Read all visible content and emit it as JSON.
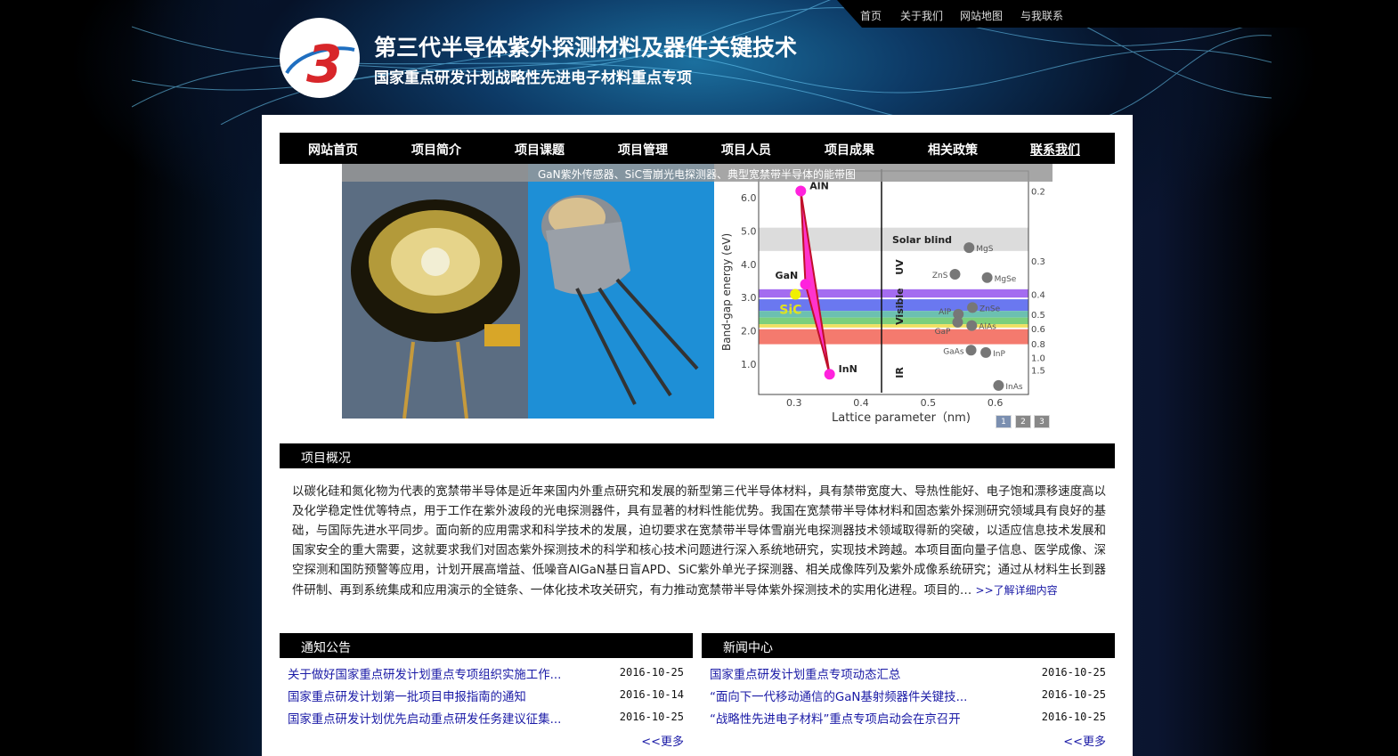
{
  "header": {
    "title": "第三代半导体紫外探测材料及器件关键技术",
    "subtitle": "国家重点研发计划战略性先进电子材料重点专项",
    "logo_text": "3",
    "top_links": [
      "首页",
      "关于我们",
      "网站地图",
      "与我联系"
    ]
  },
  "nav": [
    "网站首页",
    "项目简介",
    "项目课题",
    "项目管理",
    "项目人员",
    "项目成果",
    "相关政策",
    "联系我们"
  ],
  "slideshow": {
    "caption": "GaN紫外传感器、SiC雪崩光电探测器、典型宽禁带半导体的能带图",
    "pages": [
      "1",
      "2",
      "3"
    ],
    "active_page": 1,
    "figure": {
      "ylabel": "Band-gap energy (eV)",
      "xlabel": "Lattice parameter（nm)",
      "yticks": [
        "1.0",
        "2.0",
        "3.0",
        "4.0",
        "5.0",
        "6.0"
      ],
      "xticks": [
        "0.3",
        "0.4",
        "0.5",
        "0.6"
      ],
      "right_ticks": [
        "0.2",
        "0.3",
        "0.4",
        "0.5",
        "0.6",
        "0.8",
        "1.0",
        "1.5"
      ],
      "regions": [
        "Solar blind",
        "UV",
        "Visible",
        "IR"
      ],
      "nitrides": [
        {
          "name": "AlN",
          "x": 0.311,
          "y": 6.2
        },
        {
          "name": "GaN",
          "x": 0.318,
          "y": 3.4
        },
        {
          "name": "InN",
          "x": 0.354,
          "y": 0.7
        }
      ],
      "sic": {
        "name": "SiC",
        "x": 0.303,
        "y": 3.1
      },
      "others": [
        {
          "name": "MgS",
          "x": 0.562,
          "y": 4.5
        },
        {
          "name": "ZnS",
          "x": 0.541,
          "y": 3.7
        },
        {
          "name": "MgSe",
          "x": 0.589,
          "y": 3.6
        },
        {
          "name": "ZnSe",
          "x": 0.567,
          "y": 2.7
        },
        {
          "name": "AlP",
          "x": 0.546,
          "y": 2.5
        },
        {
          "name": "GaP",
          "x": 0.545,
          "y": 2.26
        },
        {
          "name": "AlAs",
          "x": 0.566,
          "y": 2.16
        },
        {
          "name": "GaAs",
          "x": 0.565,
          "y": 1.42
        },
        {
          "name": "InP",
          "x": 0.587,
          "y": 1.35
        },
        {
          "name": "InAs",
          "x": 0.606,
          "y": 0.36
        }
      ]
    }
  },
  "overview": {
    "title": "项目概况",
    "text": "以碳化硅和氮化物为代表的宽禁带半导体是近年来国内外重点研究和发展的新型第三代半导体材料，具有禁带宽度大、导热性能好、电子饱和漂移速度高以及化学稳定性优等特点，用于工作在紫外波段的光电探测器件，具有显著的材料性能优势。我国在宽禁带半导体材料和固态紫外探测研究领域具有良好的基础，与国际先进水平同步。面向新的应用需求和科学技术的发展，迫切要求在宽禁带半导体雪崩光电探测器技术领域取得新的突破，以适应信息技术发展和国家安全的重大需要，这就要求我们对固态紫外探测技术的科学和核心技术问题进行深入系统地研究，实现技术跨越。本项目面向量子信息、医学成像、深空探测和国防预警等应用，计划开展高增益、低噪音AlGaN基日盲APD、SiC紫外单光子探测器、相关成像阵列及紫外成像系统研究；通过从材料生长到器件研制、再到系统集成和应用演示的全链条、一体化技术攻关研究，有力推动宽禁带半导体紫外探测技术的实用化进程。项目的…",
    "more": ">>了解详细内容"
  },
  "notices": {
    "title": "通知公告",
    "items": [
      {
        "title": "关于做好国家重点研发计划重点专项组织实施工作...",
        "date": "2016-10-25"
      },
      {
        "title": "国家重点研发计划第一批项目申报指南的通知",
        "date": "2016-10-14"
      },
      {
        "title": "国家重点研发计划优先启动重点研发任务建议征集...",
        "date": "2016-10-25"
      }
    ],
    "more": "<<更多"
  },
  "news": {
    "title": "新闻中心",
    "items": [
      {
        "title": "国家重点研发计划重点专项动态汇总",
        "date": "2016-10-25"
      },
      {
        "title": "“面向下一代移动通信的GaN基射频器件关键技...",
        "date": "2016-10-25"
      },
      {
        "title": "“战略性先进电子材料”重点专项启动会在京召开",
        "date": "2016-10-25"
      }
    ],
    "more": "<<更多"
  }
}
